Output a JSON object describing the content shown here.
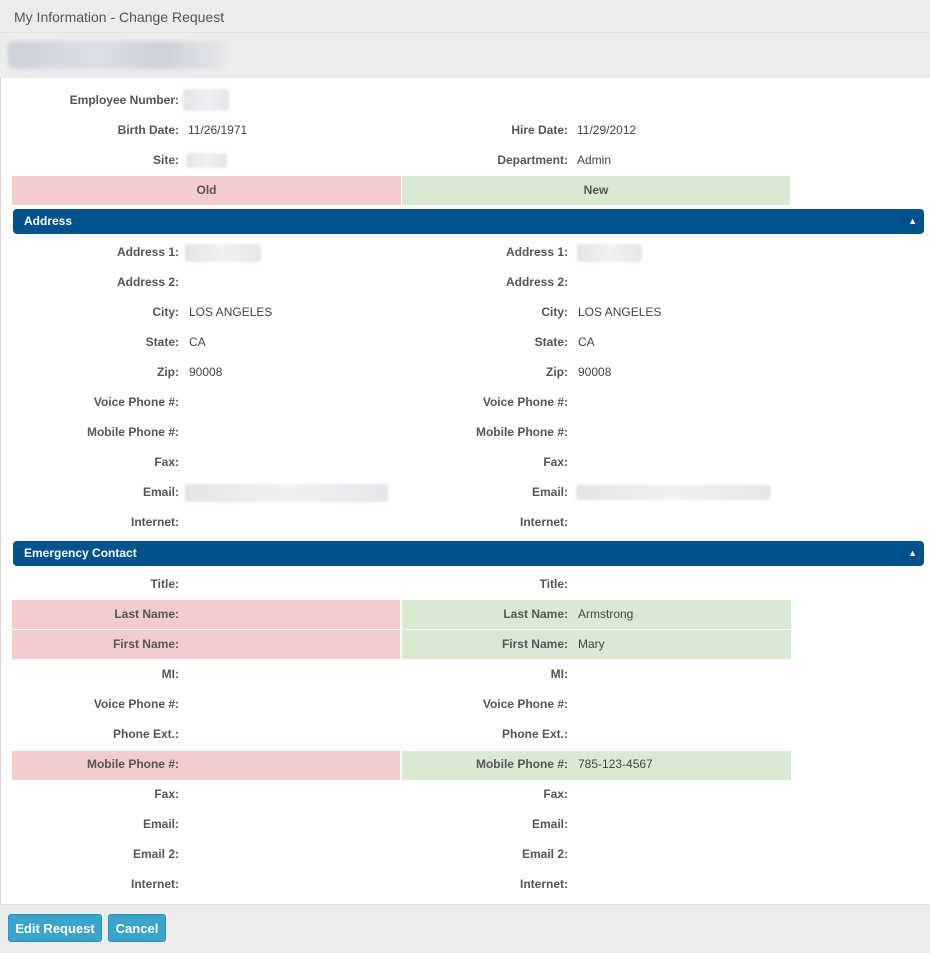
{
  "window": {
    "title": "My Information - Change Request"
  },
  "employee": {
    "employee_number_label": "Employee Number:",
    "birth_date_label": "Birth Date:",
    "birth_date": "11/26/1971",
    "hire_date_label": "Hire Date:",
    "hire_date": "11/29/2012",
    "site_label": "Site:",
    "department_label": "Department:",
    "department": "Admin"
  },
  "columns": {
    "old": "Old",
    "new": "New"
  },
  "address": {
    "title": "Address",
    "labels": {
      "address1": "Address 1:",
      "address2": "Address 2:",
      "city": "City:",
      "state": "State:",
      "zip": "Zip:",
      "voice_phone": "Voice Phone #:",
      "mobile_phone": "Mobile Phone #:",
      "fax": "Fax:",
      "email": "Email:",
      "internet": "Internet:"
    },
    "old": {
      "city": "LOS ANGELES",
      "state": "CA",
      "zip": "90008"
    },
    "new": {
      "city": "LOS ANGELES",
      "state": "CA",
      "zip": "90008"
    }
  },
  "emergency": {
    "title": "Emergency Contact",
    "labels": {
      "title": "Title:",
      "last_name": "Last Name:",
      "first_name": "First Name:",
      "mi": "MI:",
      "voice_phone": "Voice Phone #:",
      "phone_ext": "Phone Ext.:",
      "mobile_phone": "Mobile Phone #:",
      "fax": "Fax:",
      "email": "Email:",
      "email2": "Email 2:",
      "internet": "Internet:"
    },
    "new": {
      "last_name": "Armstrong",
      "first_name": "Mary",
      "mobile_phone": "785-123-4567"
    }
  },
  "footer": {
    "edit_label": "Edit Request",
    "cancel_label": "Cancel"
  },
  "icons": {
    "collapse": "caret-up-icon"
  },
  "colors": {
    "section_header": "#00528c",
    "old_highlight": "#f4cccc",
    "new_highlight": "#d9ead3",
    "button": "#38a6cc"
  }
}
